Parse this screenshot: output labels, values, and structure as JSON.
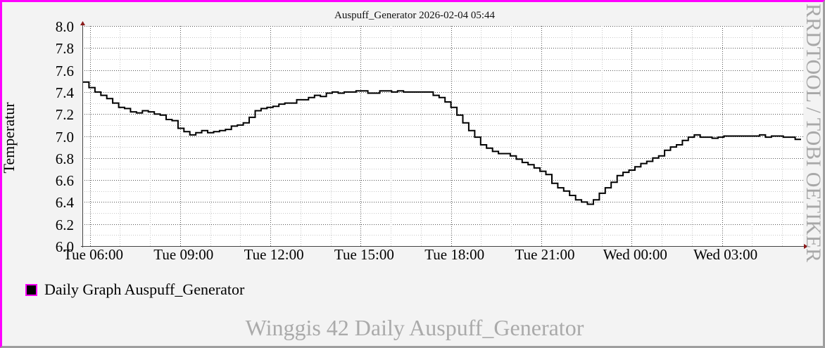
{
  "header": {
    "title": "Auspuff_Generator 2026-02-04 05:44"
  },
  "axis": {
    "ylabel": "Temperatur",
    "yticks": [
      "8.0",
      "7.8",
      "7.6",
      "7.4",
      "7.2",
      "7.0",
      "6.8",
      "6.6",
      "6.4",
      "6.2",
      "6.0"
    ],
    "xticks": [
      "Tue 06:00",
      "Tue 09:00",
      "Tue 12:00",
      "Tue 15:00",
      "Tue 18:00",
      "Tue 21:00",
      "Wed 00:00",
      "Wed 03:00"
    ]
  },
  "legend": {
    "items": [
      {
        "label": "Daily Graph Auspuff_Generator",
        "color": "#000000"
      }
    ]
  },
  "watermark": "RRDTOOL / TOBI OETIKER",
  "footer": "Winggis 42 Daily Auspuff_Generator",
  "colors": {
    "background": "#f3f3f3",
    "plot_background": "#ffffff",
    "line": "#000000",
    "border_highlight": "#ff00ff",
    "border_shadow": "#9e9e9e",
    "arrow": "#8b1a1a",
    "watermark": "#a8a8a8"
  },
  "chart_data": {
    "type": "line",
    "step": true,
    "title": "Auspuff_Generator 2026-02-04 05:44",
    "xlabel": "",
    "ylabel": "Temperatur",
    "ylim": [
      6.0,
      8.0
    ],
    "ytick_step": 0.2,
    "x_start": "Tue 05:44",
    "x_end": "Wed 05:44",
    "x_tick_labels": [
      "Tue 06:00",
      "Tue 09:00",
      "Tue 12:00",
      "Tue 15:00",
      "Tue 18:00",
      "Tue 21:00",
      "Wed 00:00",
      "Wed 03:00"
    ],
    "grid": true,
    "legend_position": "bottom-left",
    "series": [
      {
        "name": "Daily Graph Auspuff_Generator",
        "color": "#000000",
        "sample_interval_minutes": 12,
        "values": [
          7.49,
          7.44,
          7.4,
          7.37,
          7.34,
          7.3,
          7.26,
          7.25,
          7.22,
          7.21,
          7.23,
          7.22,
          7.2,
          7.19,
          7.15,
          7.14,
          7.07,
          7.04,
          7.01,
          7.03,
          7.05,
          7.03,
          7.04,
          7.05,
          7.06,
          7.09,
          7.1,
          7.12,
          7.17,
          7.23,
          7.25,
          7.26,
          7.27,
          7.29,
          7.3,
          7.3,
          7.33,
          7.33,
          7.35,
          7.37,
          7.36,
          7.39,
          7.4,
          7.39,
          7.4,
          7.4,
          7.41,
          7.41,
          7.39,
          7.39,
          7.41,
          7.41,
          7.4,
          7.41,
          7.4,
          7.4,
          7.4,
          7.4,
          7.4,
          7.37,
          7.35,
          7.31,
          7.26,
          7.19,
          7.12,
          7.05,
          6.99,
          6.92,
          6.89,
          6.86,
          6.84,
          6.84,
          6.82,
          6.79,
          6.76,
          6.74,
          6.71,
          6.68,
          6.65,
          6.57,
          6.53,
          6.5,
          6.46,
          6.42,
          6.4,
          6.38,
          6.42,
          6.48,
          6.53,
          6.58,
          6.64,
          6.67,
          6.69,
          6.72,
          6.75,
          6.77,
          6.8,
          6.82,
          6.87,
          6.9,
          6.92,
          6.96,
          6.99,
          7.01,
          6.99,
          6.99,
          6.98,
          6.99,
          7.0,
          7.0,
          7.0,
          7.0,
          7.0,
          7.0,
          7.01,
          6.99,
          7.0,
          7.0,
          6.99,
          6.99,
          6.97
        ]
      }
    ]
  }
}
